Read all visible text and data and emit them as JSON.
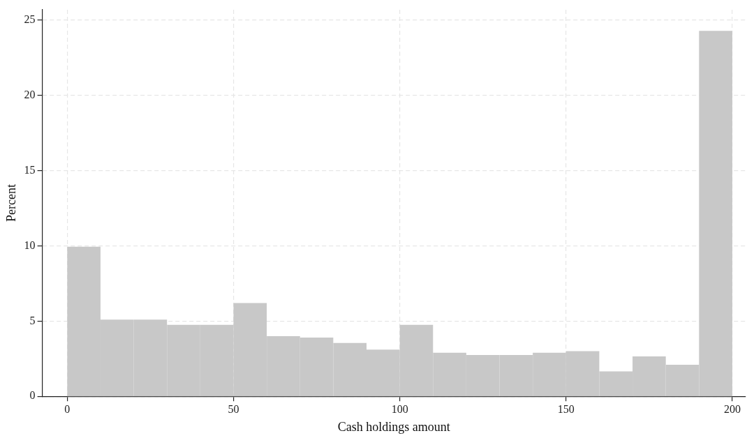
{
  "chart_data": {
    "type": "histogram",
    "xlabel": "Cash holdings amount",
    "ylabel": "Percent",
    "bins": [
      0,
      10,
      20,
      30,
      40,
      50,
      60,
      70,
      80,
      90,
      100,
      110,
      120,
      130,
      140,
      150,
      160,
      170,
      180,
      190,
      200
    ],
    "values": [
      9.95,
      5.1,
      5.1,
      4.75,
      4.75,
      6.2,
      4.0,
      3.9,
      3.55,
      3.1,
      4.75,
      2.9,
      2.75,
      2.75,
      2.9,
      3.0,
      1.65,
      2.65,
      2.1,
      24.3
    ],
    "color": "#c8c8c8",
    "xlim": [
      -7.5,
      204
    ],
    "xticks": [
      0,
      50,
      100,
      150,
      200
    ],
    "ylim": [
      0,
      25.7
    ],
    "yticks": [
      0,
      5,
      10,
      15,
      20,
      25
    ],
    "grid": true,
    "legend": false
  }
}
